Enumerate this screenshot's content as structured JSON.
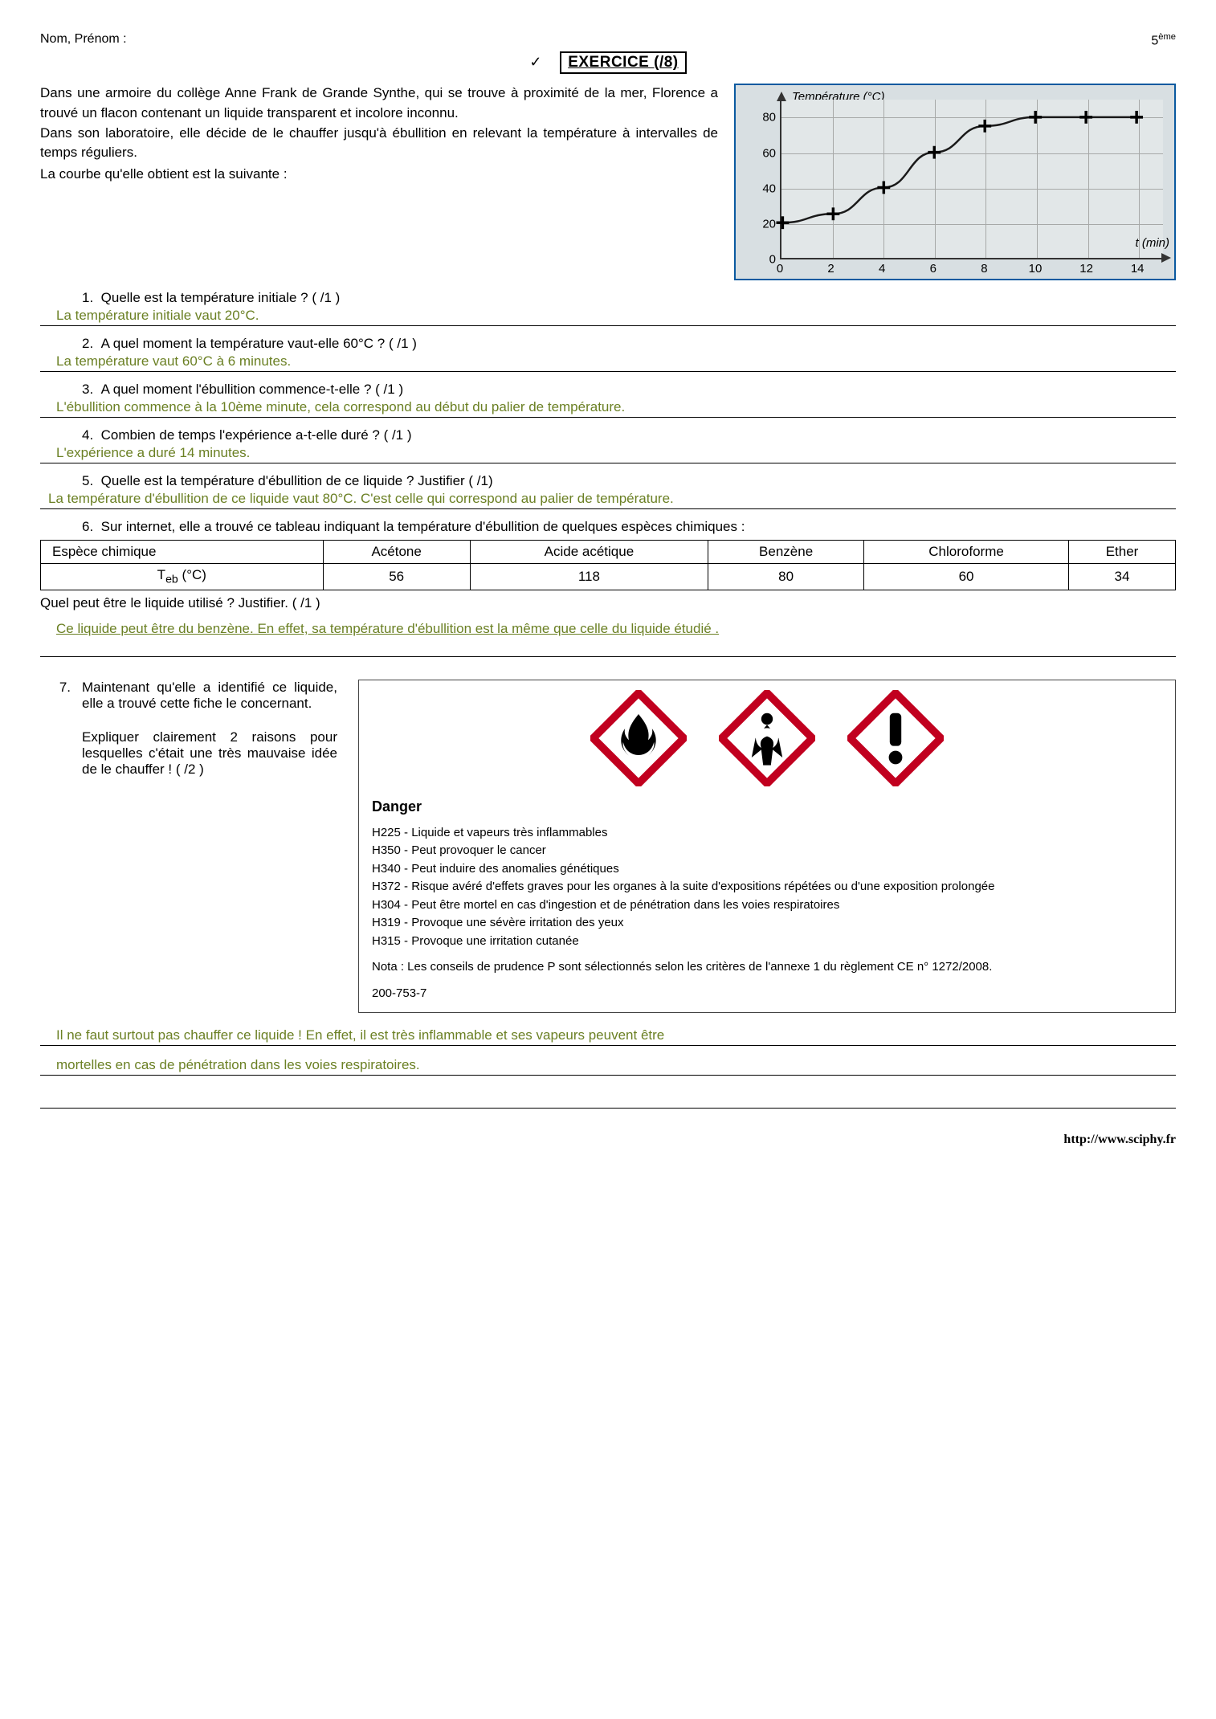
{
  "header": {
    "name_label": "Nom, Prénom :",
    "grade": "5",
    "grade_suffix": "ème"
  },
  "title": {
    "check": "✓",
    "text": "EXERCICE (/8)"
  },
  "intro": {
    "p1": "Dans une armoire du collège Anne Frank de Grande Synthe, qui se trouve à proximité de la mer, Florence a trouvé un flacon contenant un liquide transparent et incolore inconnu.",
    "p2": "Dans son laboratoire, elle décide de le chauffer jusqu'à ébullition en relevant la température à intervalles de temps réguliers.",
    "p3": "La courbe qu'elle obtient est la suivante :"
  },
  "chart": {
    "ylabel": "Température  (°C)",
    "xlabel": "t (min)",
    "ylim": [
      0,
      90
    ],
    "xlim": [
      0,
      15
    ],
    "yticks": [
      0,
      20,
      40,
      60,
      80
    ],
    "xticks": [
      0,
      2,
      4,
      6,
      8,
      10,
      12,
      14
    ],
    "curve_pts": [
      [
        0,
        20
      ],
      [
        2,
        25
      ],
      [
        4,
        40
      ],
      [
        6,
        60
      ],
      [
        8,
        75
      ],
      [
        10,
        80
      ],
      [
        12,
        80
      ],
      [
        14,
        80
      ]
    ],
    "marker": "+",
    "marker_size": 16,
    "curve_color": "#1a1a1a",
    "grid_color": "#a7a9a8",
    "bg": "#d8dfe2"
  },
  "questions": {
    "q1": {
      "num": "1.",
      "text": "Quelle est la température initiale ? ( /1 )",
      "answer": "La température initiale vaut 20°C."
    },
    "q2": {
      "num": "2.",
      "text": "A quel moment la température vaut-elle 60°C ? ( /1 )",
      "answer": "La température vaut 60°C à 6 minutes."
    },
    "q3": {
      "num": "3.",
      "text": "A quel moment l'ébullition commence-t-elle ? ( /1 )",
      "answer": "L'ébullition commence à la 10ème minute, cela correspond au début du palier de température."
    },
    "q4": {
      "num": "4.",
      "text": "Combien de temps l'expérience a-t-elle duré ? ( /1 )",
      "answer": "L'expérience a duré 14 minutes."
    },
    "q5": {
      "num": "5.",
      "text": "Quelle est la température d'ébullition de ce liquide  ? Justifier ( /1)",
      "answer": "La température d'ébullition de ce liquide vaut 80°C. C'est celle qui correspond au palier de température."
    },
    "q6": {
      "num": "6.",
      "text": "Sur internet, elle a trouvé ce tableau indiquant la température d'ébullition de quelques espèces chimiques :",
      "followup": "Quel peut être le liquide utilisé ? Justifier. ( /1 )",
      "answer": "Ce liquide peut être du benzène. En effet, sa température d'ébullition est la même que celle du liquide étudié ."
    },
    "q7": {
      "num": "7.",
      "p1": "Maintenant qu'elle a identifié ce liquide, elle a trouvé cette fiche le concernant.",
      "p2": "Expliquer clairement 2 raisons pour lesquelles c'était une très mauvaise idée de le chauffer ! ( /2 )",
      "answer1": "Il ne faut surtout pas chauffer ce liquide !  En effet, il est très inflammable et ses vapeurs peuvent être",
      "answer2": "mortelles en cas de pénétration dans les voies respiratoires."
    }
  },
  "table": {
    "h1": "Espèce chimique",
    "h2": "Teb (°C)",
    "cols": [
      "Acétone",
      "Acide acétique",
      "Benzène",
      "Chloroforme",
      "Ether"
    ],
    "vals": [
      "56",
      "118",
      "80",
      "60",
      "34"
    ]
  },
  "danger": {
    "title": "Danger",
    "lines": [
      "H225 - Liquide et vapeurs très inflammables",
      "H350 - Peut provoquer le cancer",
      "H340 - Peut induire des anomalies génétiques",
      "H372 - Risque avéré d'effets graves pour les organes à la suite d'expositions répétées ou d'une exposition prolongée",
      "H304 - Peut être mortel en cas d'ingestion et de pénétration dans les voies respiratoires",
      "H319 - Provoque une sévère irritation des yeux",
      "H315 - Provoque une irritation cutanée"
    ],
    "nota": "Nota : Les conseils de prudence P sont sélectionnés selon les critères de l'annexe 1 du règlement CE n° 1272/2008.",
    "code": "200-753-7",
    "picto_border": "#c1001f",
    "picto_fill": "#ffffff",
    "icon_color": "#000000"
  },
  "footer": {
    "url": "http://www.sciphy.fr"
  }
}
